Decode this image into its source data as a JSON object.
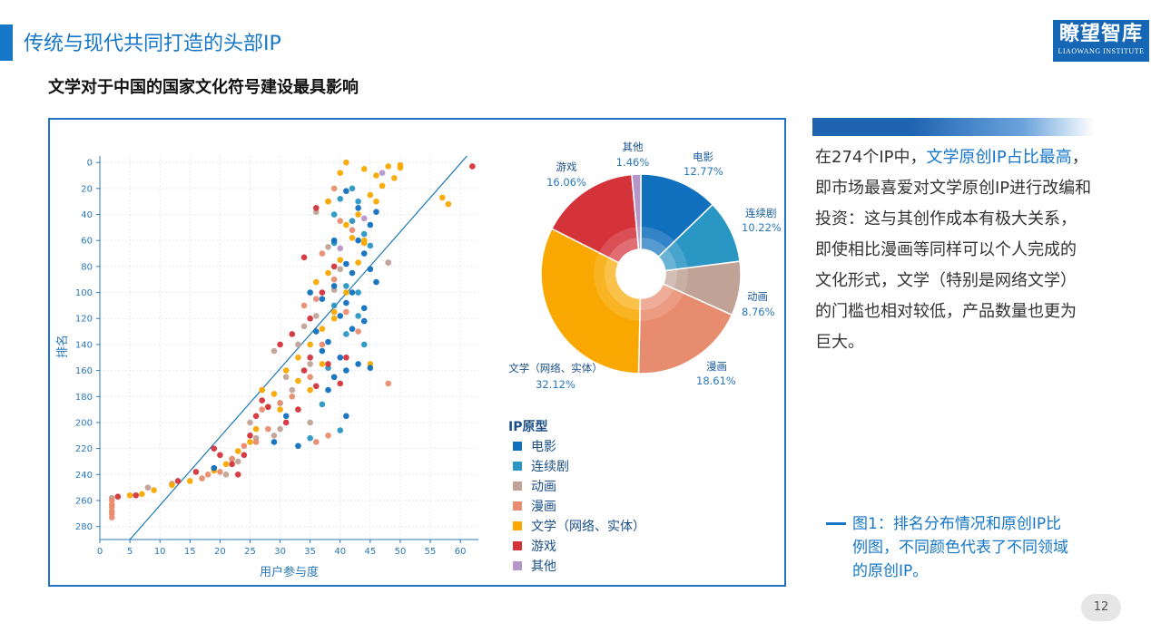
{
  "header": {
    "section_title": "传统与现代共同打造的头部IP",
    "logo_main": "瞭望智库",
    "logo_sub": "LIAOWANG INSTITUTE"
  },
  "subtitle": "文学对于中国的国家文化符号建设最具影响",
  "description": {
    "part1": "在274个IP中，",
    "highlight": "文学原创IP占比最高",
    "part2": "，即市场最喜爱对文学原创IP进行改编和投资：这与其创作成本有极大关系，即使相比漫画等同样可以个人完成的文化形式，文学（特别是网络文学）的门槛也相对较低，产品数量也更为巨大。"
  },
  "caption": "图1：排名分布情况和原创IP比例图，不同颜色代表了不同领域的原创IP。",
  "page_number": "12",
  "colors": {
    "电影": "#1170bd",
    "连续剧": "#2a96c4",
    "动画": "#c0a396",
    "漫画": "#e88c6f",
    "文学（网络、实体）": "#f8a800",
    "游戏": "#d4333a",
    "其他": "#b696c9",
    "axis": "#2a78b8",
    "grid": "#e6ebf0",
    "trend": "#1e78b4"
  },
  "chart_data": [
    {
      "type": "scatter",
      "xlabel": "用户参与度",
      "ylabel": "排名",
      "xlim": [
        0,
        63
      ],
      "ylim": [
        290,
        -5
      ],
      "xticks": [
        0,
        5,
        10,
        15,
        20,
        25,
        30,
        35,
        40,
        45,
        50,
        55,
        60
      ],
      "yticks": [
        0,
        20,
        40,
        60,
        80,
        100,
        120,
        140,
        160,
        180,
        200,
        220,
        240,
        260,
        280
      ],
      "grid": true,
      "trendline": [
        [
          5,
          290
        ],
        [
          63,
          -15
        ]
      ],
      "legend_title": "IP原型",
      "legend": [
        "电影",
        "连续剧",
        "动画",
        "漫画",
        "文学（网络、实体）",
        "游戏",
        "其他"
      ],
      "series": [
        {
          "name": "电影",
          "points": [
            [
              41,
              22
            ],
            [
              43,
              35
            ],
            [
              45,
              48
            ],
            [
              46,
              38
            ],
            [
              44,
              70
            ],
            [
              42,
              85
            ],
            [
              40,
              118
            ],
            [
              38,
              138
            ],
            [
              37,
              105
            ],
            [
              36,
              130
            ],
            [
              39,
              95
            ],
            [
              41,
              160
            ],
            [
              43,
              155
            ],
            [
              45,
              158
            ],
            [
              42,
              128
            ],
            [
              44,
              112
            ],
            [
              46,
              92
            ],
            [
              43,
              60
            ],
            [
              41,
              108
            ],
            [
              40,
              150
            ],
            [
              35,
              100
            ],
            [
              37,
              145
            ],
            [
              39,
              165
            ],
            [
              41,
              195
            ],
            [
              38,
              175
            ],
            [
              45,
              82
            ],
            [
              44,
              122
            ],
            [
              42,
              100
            ],
            [
              19,
              235
            ],
            [
              33,
              218
            ],
            [
              29,
              215
            ],
            [
              31,
              195
            ],
            [
              39,
              60
            ],
            [
              41,
              78
            ]
          ]
        },
        {
          "name": "连续剧",
          "points": [
            [
              40,
              28
            ],
            [
              42,
              45
            ],
            [
              44,
              55
            ],
            [
              39,
              62
            ],
            [
              41,
              95
            ],
            [
              43,
              118
            ],
            [
              38,
              158
            ],
            [
              37,
              186
            ],
            [
              40,
              206
            ],
            [
              35,
              212
            ],
            [
              43,
              30
            ],
            [
              45,
              64
            ],
            [
              41,
              132
            ],
            [
              39,
              110
            ],
            [
              43,
              100
            ],
            [
              44,
              140
            ],
            [
              42,
              20
            ],
            [
              39,
              40
            ]
          ]
        },
        {
          "name": "动画",
          "points": [
            [
              36,
              38
            ],
            [
              38,
              65
            ],
            [
              40,
              82
            ],
            [
              39,
              98
            ],
            [
              36,
              118
            ],
            [
              34,
              126
            ],
            [
              33,
              140
            ],
            [
              29,
              145
            ],
            [
              31,
              165
            ],
            [
              35,
              155
            ],
            [
              32,
              175
            ],
            [
              30,
              185
            ],
            [
              28,
              188
            ],
            [
              25,
              200
            ],
            [
              29,
              210
            ],
            [
              26,
              212
            ],
            [
              23,
              230
            ],
            [
              21,
              240
            ],
            [
              12,
              247
            ],
            [
              8,
              250
            ],
            [
              2,
              258
            ],
            [
              48,
              77
            ],
            [
              27,
              175
            ],
            [
              35,
              200
            ],
            [
              30,
              205
            ],
            [
              22,
              228
            ]
          ]
        },
        {
          "name": "漫画",
          "points": [
            [
              38,
              30
            ],
            [
              40,
              45
            ],
            [
              42,
              52
            ],
            [
              37,
              70
            ],
            [
              39,
              90
            ],
            [
              36,
              105
            ],
            [
              41,
              115
            ],
            [
              43,
              130
            ],
            [
              37,
              140
            ],
            [
              35,
              165
            ],
            [
              32,
              180
            ],
            [
              30,
              185
            ],
            [
              27,
              190
            ],
            [
              28,
              205
            ],
            [
              26,
              215
            ],
            [
              24,
              218
            ],
            [
              22,
              228
            ],
            [
              20,
              238
            ],
            [
              18,
              240
            ],
            [
              17,
              243
            ],
            [
              2,
              260
            ],
            [
              2,
              263
            ],
            [
              2,
              265
            ],
            [
              2,
              268
            ],
            [
              2,
              270
            ],
            [
              2,
              273
            ],
            [
              48,
              170
            ],
            [
              36,
              215
            ],
            [
              38,
              210
            ],
            [
              42,
              45
            ],
            [
              39,
              20
            ],
            [
              34,
              110
            ]
          ]
        },
        {
          "name": "文学（网络、实体）",
          "points": [
            [
              41,
              0
            ],
            [
              44,
              5
            ],
            [
              46,
              10
            ],
            [
              48,
              3
            ],
            [
              50,
              2
            ],
            [
              47,
              18
            ],
            [
              45,
              25
            ],
            [
              43,
              40
            ],
            [
              42,
              58
            ],
            [
              44,
              62
            ],
            [
              40,
              75
            ],
            [
              38,
              85
            ],
            [
              36,
              92
            ],
            [
              41,
              100
            ],
            [
              39,
              115
            ],
            [
              37,
              128
            ],
            [
              35,
              140
            ],
            [
              33,
              150
            ],
            [
              31,
              160
            ],
            [
              33,
              168
            ],
            [
              29,
              178
            ],
            [
              27,
              175
            ],
            [
              30,
              190
            ],
            [
              26,
              205
            ],
            [
              25,
              215
            ],
            [
              23,
              222
            ],
            [
              21,
              232
            ],
            [
              19,
              237
            ],
            [
              15,
              245
            ],
            [
              12,
              248
            ],
            [
              9,
              252
            ],
            [
              7,
              255
            ],
            [
              5,
              256
            ],
            [
              57,
              27
            ],
            [
              58,
              32
            ],
            [
              49,
              12
            ],
            [
              45,
              155
            ],
            [
              44,
              60
            ],
            [
              38,
              30
            ],
            [
              41,
              48
            ],
            [
              40,
              8
            ],
            [
              46,
              30
            ],
            [
              43,
              77
            ],
            [
              39,
              120
            ],
            [
              37,
              155
            ],
            [
              35,
              175
            ],
            [
              50,
              4
            ]
          ]
        },
        {
          "name": "游戏",
          "points": [
            [
              62,
              3
            ],
            [
              36,
              35
            ],
            [
              34,
              73
            ],
            [
              37,
              100
            ],
            [
              35,
              120
            ],
            [
              32,
              132
            ],
            [
              30,
              140
            ],
            [
              34,
              160
            ],
            [
              36,
              172
            ],
            [
              33,
              190
            ],
            [
              31,
              200
            ],
            [
              28,
              188
            ],
            [
              26,
              195
            ],
            [
              25,
              210
            ],
            [
              24,
              225
            ],
            [
              22,
              232
            ],
            [
              20,
              225
            ],
            [
              19,
              220
            ],
            [
              16,
              238
            ],
            [
              13,
              245
            ],
            [
              6,
              256
            ],
            [
              3,
              257
            ],
            [
              39,
              80
            ],
            [
              40,
              170
            ],
            [
              38,
              155
            ],
            [
              27,
              183
            ],
            [
              35,
              150
            ],
            [
              41,
              150
            ],
            [
              23,
              240
            ]
          ]
        },
        {
          "name": "其他",
          "points": [
            [
              48,
              77
            ],
            [
              44,
              43
            ],
            [
              47,
              8
            ],
            [
              40,
              66
            ]
          ]
        }
      ]
    },
    {
      "type": "pie",
      "donut": true,
      "slices": [
        {
          "label": "电影",
          "value": 12.77,
          "text": "12.77%"
        },
        {
          "label": "连续剧",
          "value": 10.22,
          "text": "10.22%"
        },
        {
          "label": "动画",
          "value": 8.76,
          "text": "8.76%"
        },
        {
          "label": "漫画",
          "value": 18.61,
          "text": "18.61%"
        },
        {
          "label": "文学（网络、实体）",
          "value": 32.12,
          "text": "32.12%"
        },
        {
          "label": "游戏",
          "value": 16.06,
          "text": "16.06%"
        },
        {
          "label": "其他",
          "value": 1.46,
          "text": "1.46%"
        }
      ]
    }
  ]
}
